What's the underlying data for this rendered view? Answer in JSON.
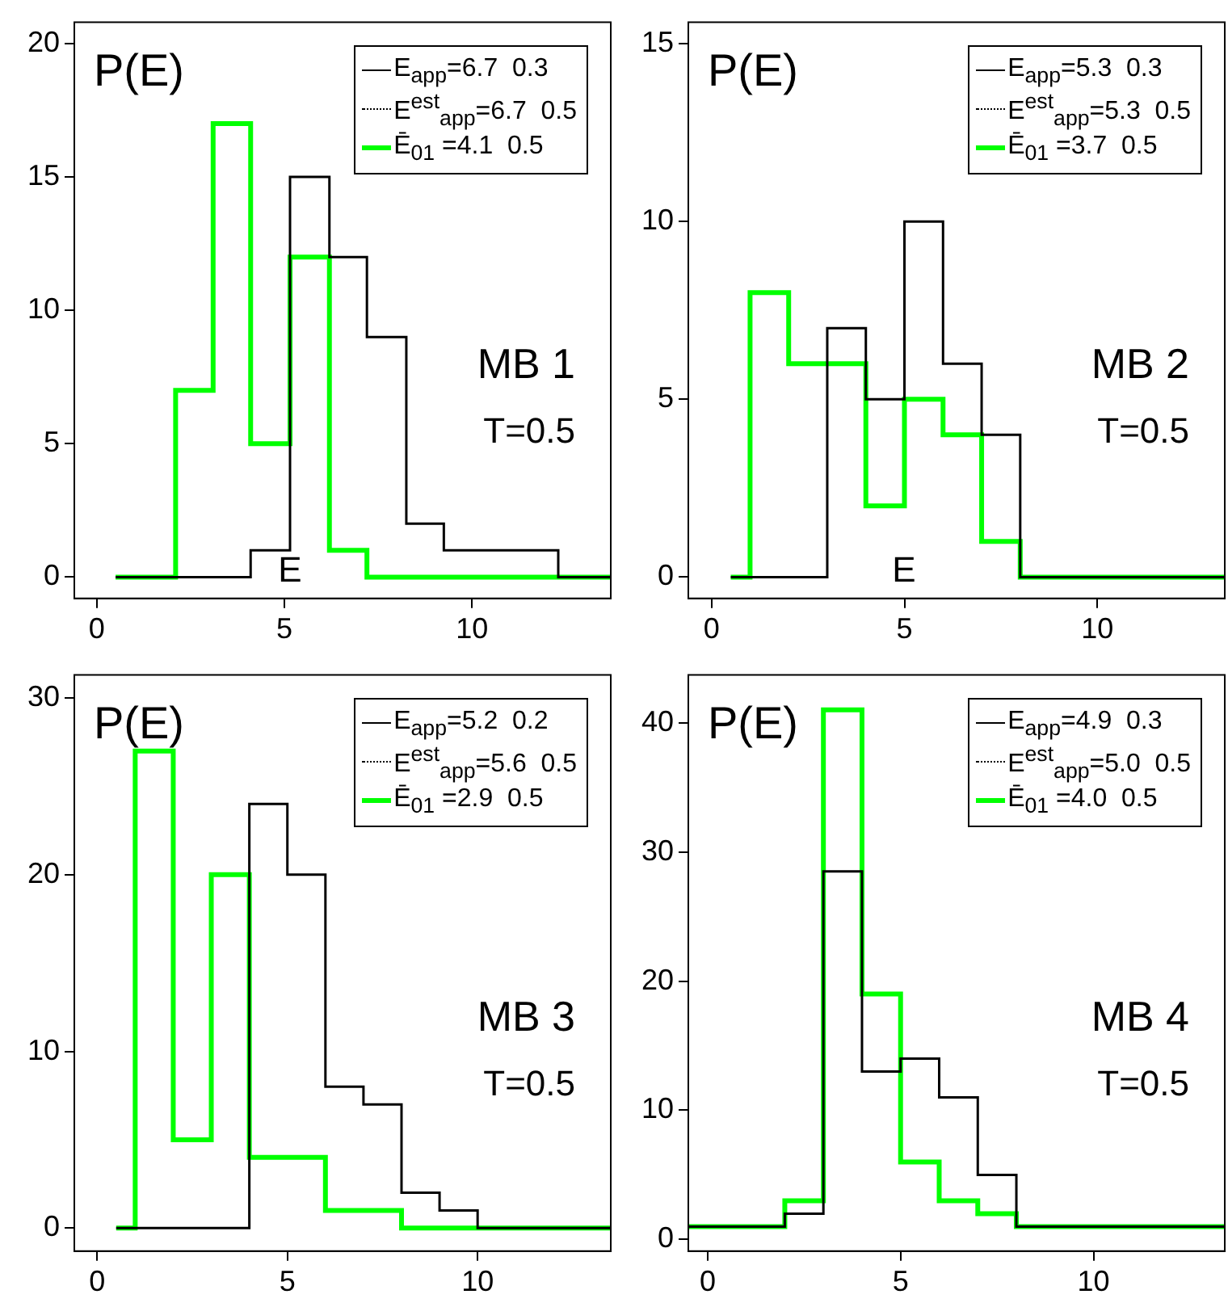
{
  "chart_data": [
    {
      "type": "histogram",
      "title": "P(E)",
      "xlabel": "E",
      "bins": [
        0.5,
        2.1,
        3.1,
        4.1,
        5.15,
        6.2,
        7.2,
        8.25,
        9.25,
        12.3,
        13.7
      ],
      "series": [
        {
          "name": "E$_{app}$=6.7  0.3",
          "color": "#000000",
          "values": [
            0,
            0,
            0,
            1,
            15,
            12,
            9,
            2,
            1,
            0
          ]
        },
        {
          "name": "Ē$_{01}$ =4.1  0.5",
          "color": "#00ff00",
          "values": [
            0,
            7,
            17,
            5,
            12,
            1,
            0,
            0,
            0,
            0
          ]
        }
      ],
      "annotations": [
        "E$^{est}$$_{app}$=6.7  0.5",
        "MB 1",
        "T=0.5"
      ],
      "xlim": [
        -0.6,
        13.7
      ],
      "xticks": [
        0,
        5,
        10
      ],
      "ylim": [
        -0.8,
        20.8
      ],
      "yticks": [
        0,
        5,
        10,
        15,
        20
      ],
      "legend": "top right",
      "marker": "none",
      "grid": false
    },
    {
      "type": "histogram",
      "title": "P(E)",
      "xlabel": "E",
      "bins": [
        0.5,
        1,
        2,
        3,
        4,
        5,
        6,
        7,
        8,
        13.3
      ],
      "series": [
        {
          "name": "E$_{app}$=5.3  0.3",
          "color": "#000000",
          "values": [
            0,
            0,
            0,
            7,
            5,
            10,
            6,
            4,
            0
          ]
        },
        {
          "name": "Ē$_{01}$ =3.7  0.5",
          "color": "#00ff00",
          "values": [
            0,
            8,
            6,
            6,
            2,
            5,
            4,
            1,
            0
          ]
        }
      ],
      "annotations": [
        "E$^{est}$$_{app}$=5.3  0.5",
        "MB 2",
        "T=0.5"
      ],
      "xlim": [
        -0.6,
        13.3
      ],
      "xticks": [
        0,
        5,
        10
      ],
      "ylim": [
        -0.6,
        15.6
      ],
      "yticks": [
        0,
        5,
        10,
        15
      ],
      "legend": "top right",
      "marker": "none",
      "grid": false
    },
    {
      "type": "histogram",
      "title": "P(E)",
      "bins": [
        0.5,
        1,
        2,
        3,
        4,
        5,
        6,
        7,
        8,
        9,
        10,
        13.5
      ],
      "series": [
        {
          "name": "E$_{app}$=5.2  0.2",
          "color": "#000000",
          "values": [
            0,
            0,
            0,
            0,
            24,
            20,
            8,
            7,
            2,
            1,
            0
          ]
        },
        {
          "name": "Ē$_{01}$ =2.9  0.5",
          "color": "#00ff00",
          "values": [
            0,
            27,
            5,
            20,
            4,
            4,
            1,
            1,
            0,
            0,
            0
          ]
        }
      ],
      "annotations": [
        "E$^{est}$$_{app}$=5.6  0.5",
        "MB 3",
        "T=0.5"
      ],
      "xlim": [
        -0.6,
        13.5
      ],
      "xticks": [
        0,
        5,
        10
      ],
      "ylim": [
        -1.3,
        31.3
      ],
      "yticks": [
        0,
        10,
        20,
        30
      ],
      "legend": "top right",
      "marker": "none",
      "grid": false
    },
    {
      "type": "histogram",
      "title": "P(E)",
      "bins": [
        -0.5,
        2,
        3,
        4,
        5,
        6,
        7,
        8,
        13.4
      ],
      "series": [
        {
          "name": "E$_{app}$=4.9  0.3",
          "color": "#000000",
          "values": [
            1,
            2,
            28.5,
            13,
            14,
            11,
            5,
            1
          ]
        },
        {
          "name": "Ē$_{01}$ =4.0  0.5",
          "color": "#00ff00",
          "values": [
            1,
            3,
            41,
            19,
            6,
            3,
            2,
            1
          ]
        }
      ],
      "annotations": [
        "E$^{est}$$_{app}$=5.0  0.5",
        "MB 4",
        "T=0.5"
      ],
      "xlim": [
        -0.5,
        13.4
      ],
      "xticks": [
        0,
        5,
        10
      ],
      "ylim": [
        -0.9,
        43.7
      ],
      "yticks": [
        0,
        10,
        20,
        30,
        40
      ],
      "legend": "top right",
      "marker": "none",
      "grid": false
    }
  ]
}
